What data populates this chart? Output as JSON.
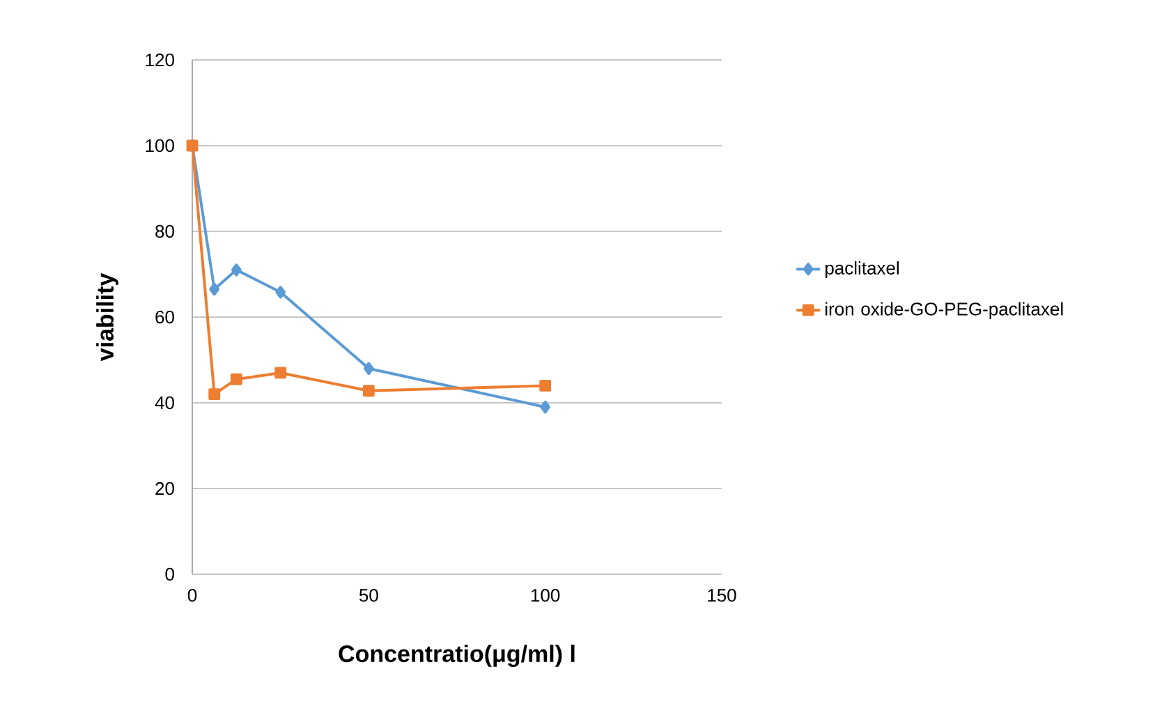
{
  "chart_data": {
    "type": "line",
    "xlabel": "Concentratio(μg/ml) l",
    "ylabel": "viability",
    "x": [
      0,
      6.25,
      12.5,
      25,
      50,
      100
    ],
    "series": [
      {
        "name": "paclitaxel",
        "color": "#5b9bd5",
        "marker": "diamond",
        "values": [
          100,
          66.5,
          71,
          65.8,
          48,
          39
        ]
      },
      {
        "name": "iron oxide-GO-PEG-paclitaxel",
        "color": "#ed7d31",
        "marker": "square",
        "values": [
          100,
          42,
          45.5,
          47,
          42.8,
          44
        ]
      }
    ],
    "xlim": [
      0,
      150
    ],
    "xticks": [
      0,
      50,
      100,
      150
    ],
    "ylim": [
      0,
      120
    ],
    "yticks": [
      0,
      20,
      40,
      60,
      80,
      100,
      120
    ],
    "grid": "y",
    "legend": "right",
    "line_style": "solid"
  }
}
